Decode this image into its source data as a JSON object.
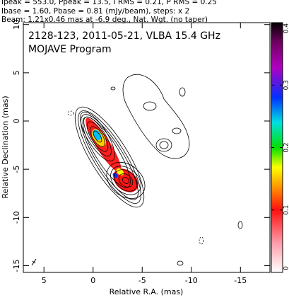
{
  "header": {
    "lines": [
      "Ipeak = 553.0, Ppeak = 13.5, I RMS = 0.21, P RMS = 0.25",
      "Ibase = 1.60, Pbase = 0.81 (mJy/beam), steps: x 2",
      "Beam: 1.21x0.46 mas at -6.9 deg., Nat. Wgt. (no taper)"
    ]
  },
  "chart_data": {
    "type": "contour",
    "title": "2128-123, 2011-05-21, VLBA 15.4 GHz",
    "subtitle": "MOJAVE Program",
    "x_label": "Relative R.A. (mas)",
    "y_label": "Relative Declination (mas)",
    "xlim": [
      7.1,
      -18.0
    ],
    "xticks": [
      5,
      0,
      -5,
      -10,
      -15
    ],
    "ylim": [
      -15.7,
      10.2
    ],
    "yticks": [
      10,
      5,
      0,
      -5,
      -10,
      -15
    ],
    "colorbar": {
      "lim": [
        0,
        0.4
      ],
      "ticks": [
        0,
        0.1,
        0.2,
        0.3,
        0.4
      ]
    }
  }
}
